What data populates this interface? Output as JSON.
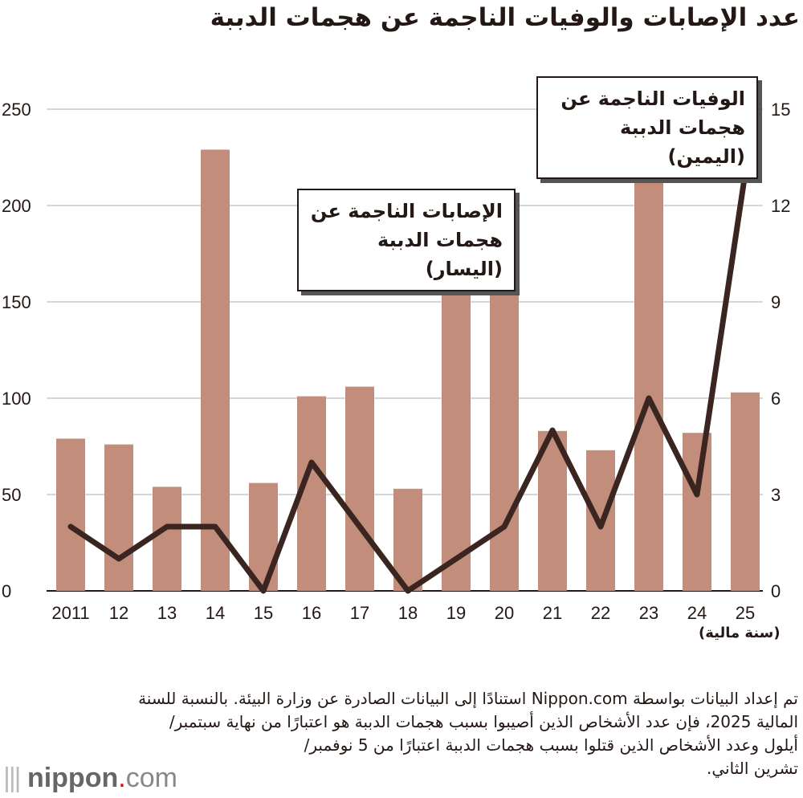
{
  "title": "عدد الإصابات والوفيات الناجمة عن هجمات الدببة",
  "chart_data": {
    "type": "bar+line",
    "categories": [
      "2011",
      "12",
      "13",
      "14",
      "15",
      "16",
      "17",
      "18",
      "19",
      "20",
      "21",
      "22",
      "23",
      "24",
      "25"
    ],
    "series": [
      {
        "name": "الإصابات الناجمة عن هجمات الدببة (اليسار)",
        "type": "bar",
        "axis": "left",
        "color": "#c28e7b",
        "values": [
          79,
          76,
          54,
          229,
          56,
          101,
          106,
          53,
          156,
          156,
          83,
          73,
          213,
          82,
          103
        ]
      },
      {
        "name": "الوفيات الناجمة عن هجمات الدببة (اليمين)",
        "type": "line",
        "axis": "right",
        "color": "#3a2520",
        "values": [
          2,
          1,
          2,
          2,
          0,
          4,
          2,
          0,
          1,
          2,
          5,
          2,
          6,
          3,
          13
        ]
      }
    ],
    "y_left": {
      "ylim": [
        0,
        250
      ],
      "ticks": [
        0,
        50,
        100,
        150,
        200,
        250
      ]
    },
    "y_right": {
      "ylim": [
        0,
        15
      ],
      "ticks": [
        0,
        3,
        6,
        9,
        12,
        15
      ]
    },
    "xunit": "(سنة مالية)",
    "grid": true
  },
  "callouts": {
    "deaths": [
      "الوفيات الناجمة عن",
      "هجمات الدببة (اليمين)"
    ],
    "injuries": [
      "الإصابات الناجمة عن",
      "هجمات الدببة (اليسار)"
    ]
  },
  "note": [
    "تم إعداد البيانات بواسطة Nippon.com استنادًا إلى البيانات الصادرة عن وزارة البيئة. بالنسبة للسنة",
    "المالية 2025، فإن عدد الأشخاص الذين أصيبوا بسبب هجمات الدببة هو اعتبارًا من نهاية سبتمبر/",
    "أيلول وعدد الأشخاص الذين قتلوا بسبب هجمات الدببة اعتبارًا من 5 نوفمبر/",
    "تشرين الثاني."
  ],
  "logo": {
    "name": "nippon",
    "dot": ".",
    "tld": "com"
  }
}
